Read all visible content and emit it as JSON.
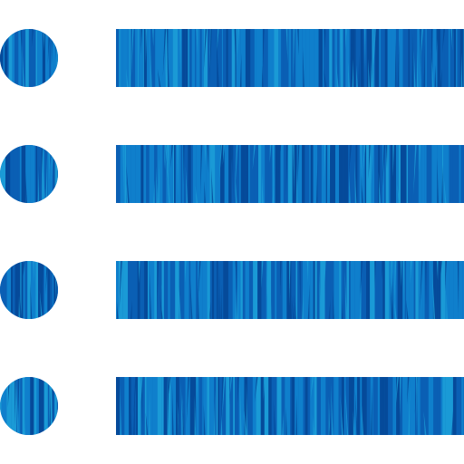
{
  "icon": {
    "name": "list-icon",
    "rows": 4,
    "texture": "vertical-wood-grain-stripes",
    "colors": {
      "primary": "#0a5fb4",
      "secondary": "#0f7fcc",
      "highlight": "#1a9ad6",
      "dark": "#054a9a",
      "background": "#ffffff"
    }
  }
}
